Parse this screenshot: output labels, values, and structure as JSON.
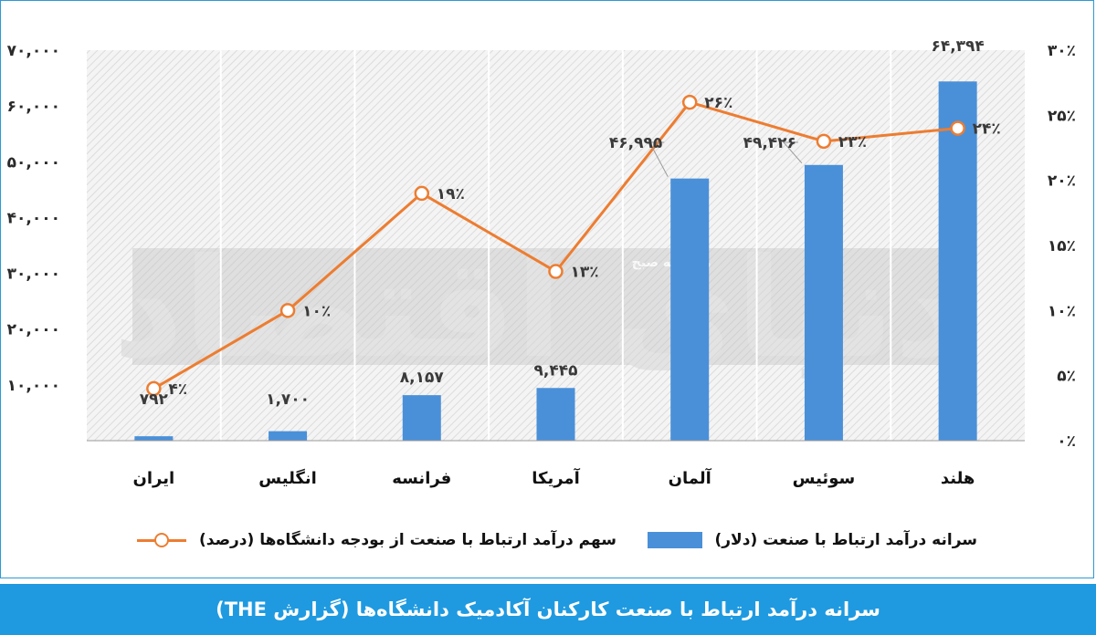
{
  "chart_data": {
    "type": "bar",
    "categories": [
      "ایران",
      "انگلیس",
      "فرانسه",
      "آمریکا",
      "آلمان",
      "سوئیس",
      "هلند"
    ],
    "series": [
      {
        "name": "سرانه درآمد ارتباط با صنعت (دلار)",
        "type": "bar",
        "axis": "left",
        "values": [
          792,
          1700,
          8157,
          9445,
          46995,
          49426,
          64394
        ],
        "labels": [
          "۷۹۲",
          "۱,۷۰۰",
          "۸,۱۵۷",
          "۹,۴۴۵",
          "۴۶,۹۹۵",
          "۴۹,۴۲۶",
          "۶۴,۳۹۴"
        ],
        "color": "#4a90d9"
      },
      {
        "name": "سهم درآمد ارتباط با صنعت از بودجه دانشگاه‌ها (درصد)",
        "type": "line",
        "axis": "right",
        "values": [
          4,
          10,
          19,
          13,
          26,
          23,
          24
        ],
        "labels": [
          "۴٪",
          "۱۰٪",
          "۱۹٪",
          "۱۳٪",
          "۲۶٪",
          "۲۳٪",
          "۲۴٪"
        ],
        "color": "#ed7d31"
      }
    ],
    "y_left": {
      "ylim": [
        0,
        70000
      ],
      "ticks": [
        10000,
        20000,
        30000,
        40000,
        50000,
        60000,
        70000
      ],
      "tick_labels": [
        "۱۰,۰۰۰",
        "۲۰,۰۰۰",
        "۳۰,۰۰۰",
        "۴۰,۰۰۰",
        "۵۰,۰۰۰",
        "۶۰,۰۰۰",
        "۷۰,۰۰۰"
      ]
    },
    "y_right": {
      "ylim": [
        0,
        30
      ],
      "ticks": [
        0,
        5,
        10,
        15,
        20,
        25,
        30
      ],
      "tick_labels": [
        "۰٪",
        "۵٪",
        "۱۰٪",
        "۱۵٪",
        "۲۰٪",
        "۲۵٪",
        "۳۰٪"
      ]
    },
    "grid": false,
    "legend_position": "bottom"
  },
  "legend": {
    "bar_label": "سرانه درآمد ارتباط با صنعت (دلار)",
    "line_label": "سهم درآمد ارتباط با صنعت از بودجه دانشگاه‌ها (درصد)"
  },
  "watermark": {
    "logo": "دنیای اقتصاد",
    "tagline": "روزنامه صبح"
  },
  "footer": {
    "title": "سرانه درآمد ارتباط با صنعت کارکنان آکادمیک دانشگاه‌ها (گزارش THE)"
  },
  "colors": {
    "bar": "#4a90d9",
    "line": "#ed7d31",
    "footer_bg": "#1f9ae0",
    "frame": "#2e9ad6"
  }
}
